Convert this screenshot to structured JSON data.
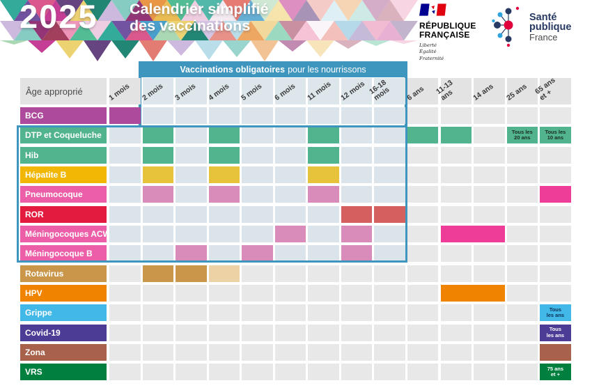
{
  "header": {
    "year": "2025",
    "title_line1": "Calendrier simplifié",
    "title_line2": "des vaccinations",
    "mosaic_palette": [
      "#27a695",
      "#157f6d",
      "#49b98e",
      "#a5d6b0",
      "#e8913c",
      "#df5a4e",
      "#e2756a",
      "#ec90b5",
      "#c2338f",
      "#8e2a70",
      "#6a4a9c",
      "#cab5dc",
      "#eccadd",
      "#ecd06a",
      "#e9b84a",
      "#3f9ac9",
      "#a8d4e4",
      "#f0e6ee",
      "#5d3a78",
      "#9c3554",
      "#d94f86",
      "#7fc9c0"
    ]
  },
  "logos": {
    "republique": {
      "line1": "RÉPUBLIQUE",
      "line2": "FRANÇAISE",
      "motto1": "Liberté",
      "motto2": "Égalité",
      "motto3": "Fraternité",
      "flag_blue": "#000091",
      "flag_red": "#e1000f"
    },
    "sante_publique": {
      "line1": "Santé",
      "line2": "publique",
      "line3": "France",
      "navy": "#283a63",
      "light_blue": "#2fa3dc",
      "red": "#e1003c"
    }
  },
  "banner": {
    "bold": "Vaccinations obligatoires",
    "rest": "pour les nourrissons",
    "color": "#3e96bf"
  },
  "colors": {
    "banner": "#3e96bf",
    "cell_tint": "#dbe4ea",
    "cell_gray": "#e8e8e8",
    "header_tint": "#dce6eb",
    "header_gray": "#e3e3e3"
  },
  "table": {
    "corner_label": "Âge approprié",
    "columns": [
      "1 mois",
      "2 mois",
      "3 mois",
      "4 mois",
      "5 mois",
      "6 mois",
      "11 mois",
      "12 mois",
      "16-18\nmois",
      "6 ans",
      "11-13\nans",
      "14 ans",
      "25 ans",
      "65 ans\net +"
    ],
    "rows": [
      {
        "label": "BCG",
        "color": "#ae4a9c",
        "in_box": false,
        "cells": [
          {
            "col": 0,
            "color": "#ae4a9c"
          }
        ]
      },
      {
        "label": "DTP et Coqueluche",
        "color": "#52b48e",
        "in_box": true,
        "cells": [
          {
            "col": 1,
            "color": "#52b48e"
          },
          {
            "col": 3,
            "color": "#52b48e"
          },
          {
            "col": 6,
            "color": "#52b48e"
          },
          {
            "col": 9,
            "color": "#52b48e"
          },
          {
            "col": 10,
            "color": "#52b48e"
          },
          {
            "col": 12,
            "color": "#52b48e",
            "text": "Tous les\n20 ans",
            "text_color": "#1a2b1f"
          },
          {
            "col": 13,
            "color": "#52b48e",
            "text": "Tous les\n10 ans",
            "text_color": "#1a2b1f"
          }
        ]
      },
      {
        "label": "Hib",
        "color": "#52b48e",
        "in_box": true,
        "cells": [
          {
            "col": 1,
            "color": "#52b48e"
          },
          {
            "col": 3,
            "color": "#52b48e"
          },
          {
            "col": 6,
            "color": "#52b48e"
          }
        ]
      },
      {
        "label": "Hépatite B",
        "color": "#f2b705",
        "in_box": true,
        "cells": [
          {
            "col": 1,
            "color": "#e7c33c"
          },
          {
            "col": 3,
            "color": "#e7c33c"
          },
          {
            "col": 6,
            "color": "#e7c33c"
          }
        ]
      },
      {
        "label": "Pneumocoque",
        "color": "#ec5fa8",
        "in_box": true,
        "cells": [
          {
            "col": 1,
            "color": "#d98cba"
          },
          {
            "col": 3,
            "color": "#d98cba"
          },
          {
            "col": 6,
            "color": "#d98cba"
          },
          {
            "col": 13,
            "color": "#ed3d98"
          }
        ]
      },
      {
        "label": "ROR",
        "color": "#e31c3f",
        "in_box": true,
        "cells": [
          {
            "col": 7,
            "color": "#d45f5f"
          },
          {
            "col": 8,
            "color": "#d45f5f"
          }
        ]
      },
      {
        "label": "Méningocoques ACWY",
        "color": "#ec5fa8",
        "in_box": true,
        "cells": [
          {
            "col": 5,
            "color": "#d98cba"
          },
          {
            "col": 7,
            "color": "#d98cba"
          },
          {
            "col": 10,
            "span": 2,
            "color": "#ed3d98"
          }
        ]
      },
      {
        "label": "Méningocoque B",
        "color": "#ec5fa8",
        "in_box": true,
        "cells": [
          {
            "col": 2,
            "color": "#d98cba"
          },
          {
            "col": 4,
            "color": "#d98cba"
          },
          {
            "col": 7,
            "color": "#d98cba"
          }
        ]
      },
      {
        "label": "Rotavirus",
        "color": "#c9964a",
        "in_box": false,
        "cells": [
          {
            "col": 1,
            "color": "#c9964a"
          },
          {
            "col": 2,
            "color": "#c9964a"
          },
          {
            "col": 3,
            "color": "#ecd2a4"
          }
        ]
      },
      {
        "label": "HPV",
        "color": "#f08400",
        "in_box": false,
        "cells": [
          {
            "col": 10,
            "span": 2,
            "color": "#f08400"
          }
        ]
      },
      {
        "label": "Grippe",
        "color": "#41b8e8",
        "in_box": false,
        "cells": [
          {
            "col": 13,
            "color": "#41b8e8",
            "text": "Tous\nles ans",
            "text_color": "#0c2f52"
          }
        ]
      },
      {
        "label": "Covid-19",
        "color": "#4d3c96",
        "in_box": false,
        "cells": [
          {
            "col": 13,
            "color": "#4d3c96",
            "text": "Tous\nles ans",
            "text_color": "#ffffff"
          }
        ]
      },
      {
        "label": "Zona",
        "color": "#a8624c",
        "in_box": false,
        "cells": [
          {
            "col": 13,
            "color": "#a8624c"
          }
        ]
      },
      {
        "label": "VRS",
        "color": "#00803e",
        "in_box": false,
        "cells": [
          {
            "col": 13,
            "color": "#00803e",
            "text": "75 ans\net +",
            "text_color": "#ffffff"
          }
        ]
      }
    ]
  }
}
